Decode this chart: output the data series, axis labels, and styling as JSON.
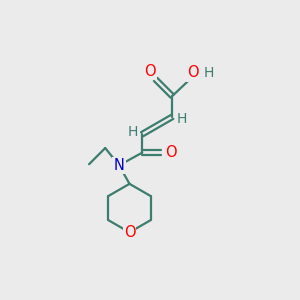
{
  "background_color": "#ebebeb",
  "bond_color": "#3d7d6e",
  "atom_colors": {
    "O": "#ff0000",
    "N": "#0000cc",
    "H": "#3d7d6e",
    "C": "#3d7d6e"
  },
  "font_size": 10.5,
  "lw": 1.6
}
